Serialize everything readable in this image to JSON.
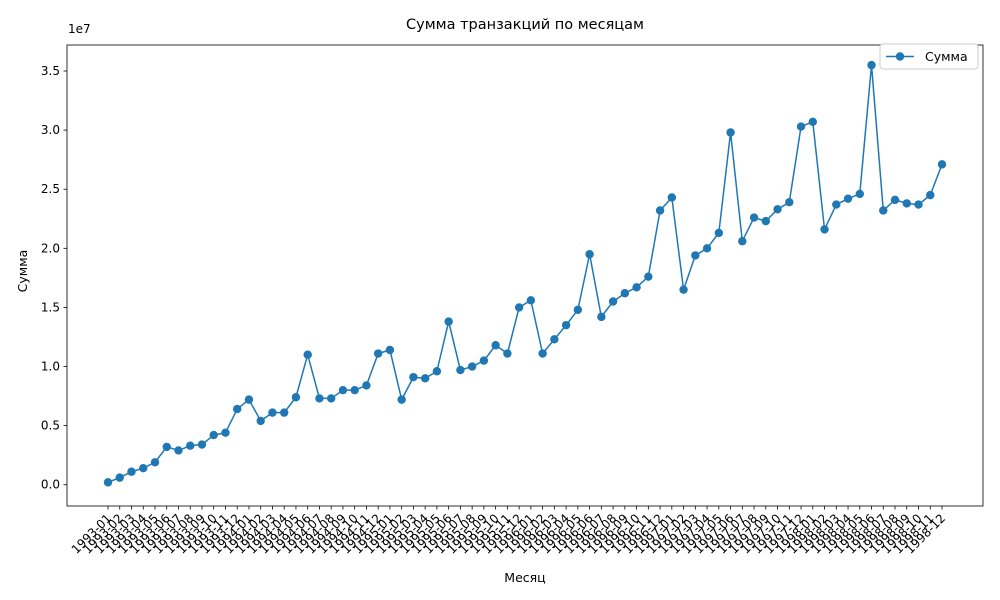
{
  "chart_data": {
    "type": "line",
    "title": "Сумма транзакций по месяцам",
    "xlabel": "Месяц",
    "ylabel": "Сумма",
    "y_offset_text": "1e7",
    "legend_position": "top-right",
    "marker": "circle",
    "grid": false,
    "color": "#1f77b4",
    "ylim": [
      -0.18,
      3.72
    ],
    "yticks": [
      0.0,
      0.5,
      1.0,
      1.5,
      2.0,
      2.5,
      3.0,
      3.5
    ],
    "ytick_labels": [
      "0.0",
      "0.5",
      "1.0",
      "1.5",
      "2.0",
      "2.5",
      "3.0",
      "3.5"
    ],
    "x": [
      "1993-01",
      "1993-02",
      "1993-03",
      "1993-04",
      "1993-05",
      "1993-06",
      "1993-07",
      "1993-08",
      "1993-09",
      "1993-10",
      "1993-11",
      "1993-12",
      "1994-01",
      "1994-02",
      "1994-03",
      "1994-04",
      "1994-05",
      "1994-06",
      "1994-07",
      "1994-08",
      "1994-09",
      "1994-10",
      "1994-11",
      "1994-12",
      "1995-01",
      "1995-02",
      "1995-03",
      "1995-04",
      "1995-05",
      "1995-06",
      "1995-07",
      "1995-08",
      "1995-09",
      "1995-10",
      "1995-11",
      "1995-12",
      "1996-01",
      "1996-02",
      "1996-03",
      "1996-04",
      "1996-05",
      "1996-06",
      "1996-07",
      "1996-08",
      "1996-09",
      "1996-10",
      "1996-11",
      "1996-12",
      "1997-01",
      "1997-02",
      "1997-03",
      "1997-04",
      "1997-05",
      "1997-06",
      "1997-07",
      "1997-08",
      "1997-09",
      "1997-10",
      "1997-11",
      "1997-12",
      "1998-01",
      "1998-02",
      "1998-03",
      "1998-04",
      "1998-05",
      "1998-06",
      "1998-07",
      "1998-08",
      "1998-09",
      "1998-10",
      "1998-11",
      "1998-12"
    ],
    "series": [
      {
        "name": "Сумма",
        "values": [
          0.02,
          0.06,
          0.11,
          0.14,
          0.19,
          0.32,
          0.29,
          0.33,
          0.34,
          0.42,
          0.44,
          0.64,
          0.72,
          0.54,
          0.61,
          0.61,
          0.74,
          1.1,
          0.73,
          0.73,
          0.8,
          0.8,
          0.84,
          1.11,
          1.14,
          0.72,
          0.91,
          0.9,
          0.96,
          1.38,
          0.97,
          1.0,
          1.05,
          1.18,
          1.11,
          1.5,
          1.56,
          1.11,
          1.23,
          1.35,
          1.48,
          1.95,
          1.42,
          1.55,
          1.62,
          1.67,
          1.76,
          2.32,
          2.43,
          1.65,
          1.94,
          2.0,
          2.13,
          2.98,
          2.06,
          2.26,
          2.23,
          2.33,
          2.39,
          3.03,
          3.07,
          2.16,
          2.37,
          2.42,
          2.46,
          3.55,
          2.32,
          2.41,
          2.38,
          2.37,
          2.45,
          2.71
        ]
      }
    ]
  }
}
